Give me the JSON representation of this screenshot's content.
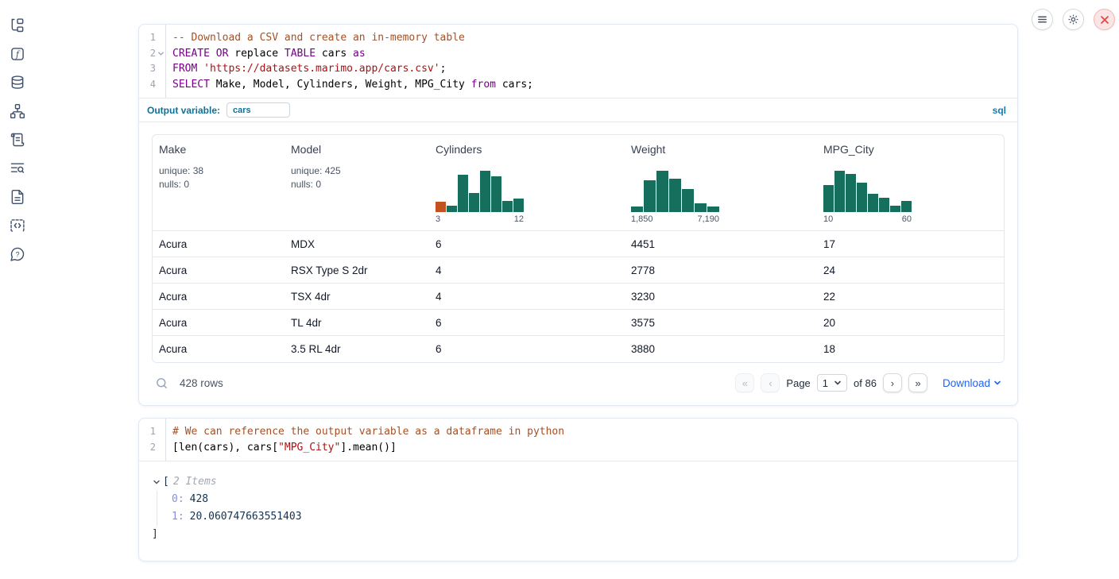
{
  "colors": {
    "accent_teal": "#0e7199",
    "sql_badge_blue": "#1779ad",
    "keyword_purple": "#770088",
    "comment_orange": "#a45127",
    "string_red": "#aa1111",
    "hist_green": "#166e5c",
    "hist_orange": "#c25321",
    "link_blue": "#2563eb",
    "close_red": "#e14646"
  },
  "sidebar": {
    "icons": [
      "file-tree-icon",
      "variables-icon",
      "datasources-icon",
      "dependency-graph-icon",
      "scratchpad-icon",
      "logs-icon",
      "documentation-icon",
      "snippets-icon",
      "help-icon"
    ]
  },
  "window_controls": {
    "menu": "menu-icon",
    "settings": "gear-icon",
    "close": "close-icon"
  },
  "sql_cell": {
    "language_badge": "sql",
    "output_variable_label": "Output variable:",
    "output_variable_value": "cars",
    "code": [
      {
        "num": "1",
        "fold": false,
        "tokens": [
          {
            "t": "-- Download a CSV and create an in-memory table",
            "c": "comment"
          }
        ]
      },
      {
        "num": "2",
        "fold": true,
        "tokens": [
          {
            "t": "CREATE OR",
            "c": "keyword"
          },
          {
            "t": " replace ",
            "c": "plain"
          },
          {
            "t": "TABLE",
            "c": "keyword"
          },
          {
            "t": " cars ",
            "c": "plain"
          },
          {
            "t": "as",
            "c": "keyword"
          }
        ]
      },
      {
        "num": "3",
        "fold": false,
        "tokens": [
          {
            "t": "FROM",
            "c": "keyword"
          },
          {
            "t": " ",
            "c": "plain"
          },
          {
            "t": "'https://datasets.marimo.app/cars.csv'",
            "c": "string"
          },
          {
            "t": ";",
            "c": "plain"
          }
        ]
      },
      {
        "num": "4",
        "fold": false,
        "tokens": [
          {
            "t": "SELECT",
            "c": "keyword"
          },
          {
            "t": " Make, Model, Cylinders, Weight, MPG_City ",
            "c": "plain"
          },
          {
            "t": "from",
            "c": "keyword"
          },
          {
            "t": " cars;",
            "c": "plain"
          }
        ]
      }
    ]
  },
  "table": {
    "columns": [
      {
        "name": "Make",
        "stats": [
          "unique: 38",
          "nulls: 0"
        ]
      },
      {
        "name": "Model",
        "stats": [
          "unique: 425",
          "nulls: 0"
        ]
      },
      {
        "name": "Cylinders",
        "hist": {
          "values": [
            0.24,
            0.15,
            0.85,
            0.44,
            0.95,
            0.82,
            0.25,
            0.3
          ],
          "first_bar_orange": true,
          "min": "3",
          "max": "12"
        }
      },
      {
        "name": "Weight",
        "hist": {
          "values": [
            0.13,
            0.72,
            0.95,
            0.77,
            0.52,
            0.2,
            0.13
          ],
          "first_bar_orange": false,
          "min": "1,850",
          "max": "7,190"
        }
      },
      {
        "name": "MPG_City",
        "hist": {
          "values": [
            0.62,
            0.95,
            0.87,
            0.67,
            0.42,
            0.33,
            0.15,
            0.26
          ],
          "first_bar_orange": false,
          "min": "10",
          "max": "60"
        }
      }
    ],
    "rows": [
      [
        "Acura",
        "MDX",
        "6",
        "4451",
        "17"
      ],
      [
        "Acura",
        "RSX Type S 2dr",
        "4",
        "2778",
        "24"
      ],
      [
        "Acura",
        "TSX 4dr",
        "4",
        "3230",
        "22"
      ],
      [
        "Acura",
        "TL 4dr",
        "6",
        "3575",
        "20"
      ],
      [
        "Acura",
        "3.5 RL 4dr",
        "6",
        "3880",
        "18"
      ]
    ],
    "footer": {
      "row_count": "428 rows",
      "page_label": "Page",
      "page_value": "1",
      "page_total": "of 86",
      "download_label": "Download",
      "pagination": {
        "first": "«",
        "prev": "‹",
        "next": "›",
        "last": "»"
      }
    }
  },
  "python_cell": {
    "code": [
      {
        "num": "1",
        "fold": false,
        "tokens": [
          {
            "t": "# We can reference the output variable as a dataframe in python",
            "c": "comment"
          }
        ]
      },
      {
        "num": "2",
        "fold": false,
        "tokens": [
          {
            "t": "[len(cars), cars[",
            "c": "plain"
          },
          {
            "t": "\"MPG_City\"",
            "c": "string"
          },
          {
            "t": "].mean()]",
            "c": "plain"
          }
        ]
      }
    ],
    "output": {
      "open_bracket": "[",
      "items_label": "2 Items",
      "entries": [
        {
          "key": "0:",
          "value": "428"
        },
        {
          "key": "1:",
          "value": "20.060747663551403"
        }
      ],
      "close_bracket": "]"
    }
  }
}
